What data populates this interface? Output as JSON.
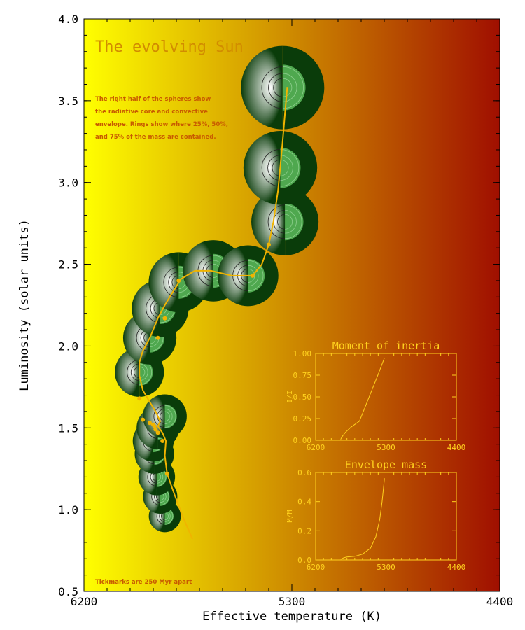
{
  "colors": {
    "bg_left": "#ffff00",
    "bg_mid": "#d29600",
    "bg_right": "#a00f00",
    "track": "#f0b400",
    "title": "#d28c00",
    "annotation": "#c85a00",
    "inset": "#ffd21e",
    "sphere_light": "#ffffff",
    "sphere_dark": "#0a3c0a",
    "sphere_core": "#4fa84f"
  },
  "chart_data": [
    {
      "type": "line",
      "title": "The evolving Sun",
      "xlabel": "Effective temperature (K)",
      "ylabel": "Luminosity (solar units)",
      "xlim": [
        6200,
        4400
      ],
      "ylim": [
        0.5,
        4.0
      ],
      "x_ticks": [
        "6200",
        "5300",
        "4400"
      ],
      "y_ticks": [
        "0.5",
        "1.0",
        "1.5",
        "2.0",
        "2.5",
        "3.0",
        "3.5",
        "4.0"
      ],
      "annotations": [
        "The right half of the spheres show",
        "the radiative core and convective",
        "envelope. Rings show where 25%, 50%,",
        "and 75% of the mass are contained.",
        "Tickmarks are 250 Myr apart"
      ],
      "series": [
        {
          "x": [
            5730,
            5770,
            5810,
            5840,
            5850,
            5845,
            5860,
            5880,
            5870,
            5890,
            5920,
            5945,
            5960,
            5960,
            5945,
            5915,
            5880,
            5850,
            5820,
            5780,
            5720,
            5650,
            5560,
            5470,
            5430,
            5400,
            5380,
            5360,
            5350,
            5340,
            5330,
            5320
          ],
          "y": [
            0.82,
            0.95,
            1.1,
            1.22,
            1.33,
            1.42,
            1.47,
            1.51,
            1.54,
            1.6,
            1.67,
            1.73,
            1.82,
            1.9,
            1.97,
            2.05,
            2.17,
            2.25,
            2.32,
            2.41,
            2.46,
            2.46,
            2.43,
            2.43,
            2.5,
            2.62,
            2.76,
            2.95,
            3.1,
            3.25,
            3.42,
            3.58
          ]
        }
      ],
      "tickmarks": {
        "x": [
          5840,
          5860,
          5880,
          5890,
          5895,
          5900,
          5915,
          5945,
          5960,
          5880,
          5850,
          5790,
          5470,
          5400
        ],
        "y": [
          1.22,
          1.42,
          1.47,
          1.49,
          1.51,
          1.52,
          1.53,
          1.55,
          1.68,
          2.05,
          2.17,
          2.4,
          2.43,
          2.62
        ]
      },
      "spheres": [
        {
          "x": 5850,
          "y": 0.96
        },
        {
          "x": 5870,
          "y": 1.08
        },
        {
          "x": 5885,
          "y": 1.2
        },
        {
          "x": 5895,
          "y": 1.34
        },
        {
          "x": 5900,
          "y": 1.42
        },
        {
          "x": 5880,
          "y": 1.5
        },
        {
          "x": 5850,
          "y": 1.57
        },
        {
          "x": 5960,
          "y": 1.84
        },
        {
          "x": 5915,
          "y": 2.05
        },
        {
          "x": 5870,
          "y": 2.23
        },
        {
          "x": 5790,
          "y": 2.39
        },
        {
          "x": 5640,
          "y": 2.46
        },
        {
          "x": 5490,
          "y": 2.43
        },
        {
          "x": 5330,
          "y": 2.76
        },
        {
          "x": 5350,
          "y": 3.09
        },
        {
          "x": 5340,
          "y": 3.58
        }
      ]
    },
    {
      "type": "line",
      "title": "Moment of inertia",
      "xlabel": "",
      "ylabel": "I/I",
      "xlim": [
        6200,
        4400
      ],
      "ylim": [
        0.0,
        1.0
      ],
      "x_ticks": [
        "6200",
        "5300",
        "4400"
      ],
      "y_ticks": [
        "0.00",
        "0.25",
        "0.50",
        "0.75",
        "1.00"
      ],
      "series": [
        {
          "x": [
            5880,
            5870,
            5860,
            5855,
            5845,
            5820,
            5750,
            5640,
            5560,
            5480,
            5400,
            5320
          ],
          "y": [
            0.01,
            0.03,
            0.04,
            0.05,
            0.06,
            0.09,
            0.15,
            0.22,
            0.4,
            0.58,
            0.76,
            0.95
          ]
        }
      ]
    },
    {
      "type": "line",
      "title": "Envelope mass",
      "xlabel": "",
      "ylabel": "M/M",
      "xlim": [
        6200,
        4400
      ],
      "ylim": [
        0.0,
        0.6
      ],
      "x_ticks": [
        "6200",
        "5300",
        "4400"
      ],
      "y_ticks": [
        "0.0",
        "0.2",
        "0.4",
        "0.6"
      ],
      "series": [
        {
          "x": [
            5880,
            5860,
            5840,
            5800,
            5700,
            5600,
            5500,
            5430,
            5380,
            5350,
            5320
          ],
          "y": [
            0.005,
            0.01,
            0.015,
            0.02,
            0.025,
            0.04,
            0.08,
            0.16,
            0.28,
            0.4,
            0.56
          ]
        }
      ]
    }
  ]
}
